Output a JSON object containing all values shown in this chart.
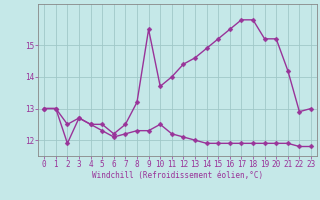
{
  "title": "",
  "xlabel": "Windchill (Refroidissement éolien,°C)",
  "background_color": "#c5e8e8",
  "grid_color": "#a0c8c8",
  "line_color": "#993399",
  "hours": [
    0,
    1,
    2,
    3,
    4,
    5,
    6,
    7,
    8,
    9,
    10,
    11,
    12,
    13,
    14,
    15,
    16,
    17,
    18,
    19,
    20,
    21,
    22,
    23
  ],
  "series1": [
    13.0,
    13.0,
    11.9,
    12.7,
    12.5,
    12.5,
    12.2,
    12.5,
    13.2,
    15.5,
    13.7,
    14.0,
    14.4,
    14.6,
    14.9,
    15.2,
    15.5,
    15.8,
    15.8,
    15.2,
    15.2,
    14.2,
    12.9,
    13.0
  ],
  "series2": [
    13.0,
    13.0,
    12.5,
    12.7,
    12.5,
    12.3,
    12.1,
    12.2,
    12.3,
    12.3,
    12.5,
    12.2,
    12.1,
    12.0,
    11.9,
    11.9,
    11.9,
    11.9,
    11.9,
    11.9,
    11.9,
    11.9,
    11.8,
    11.8
  ],
  "ylim": [
    11.5,
    16.3
  ],
  "yticks": [
    12,
    13,
    14,
    15
  ],
  "xlim": [
    -0.5,
    23.5
  ],
  "marker_size": 2.5,
  "linewidth": 1.0,
  "xlabel_fontsize": 5.5,
  "tick_fontsize": 5.5
}
